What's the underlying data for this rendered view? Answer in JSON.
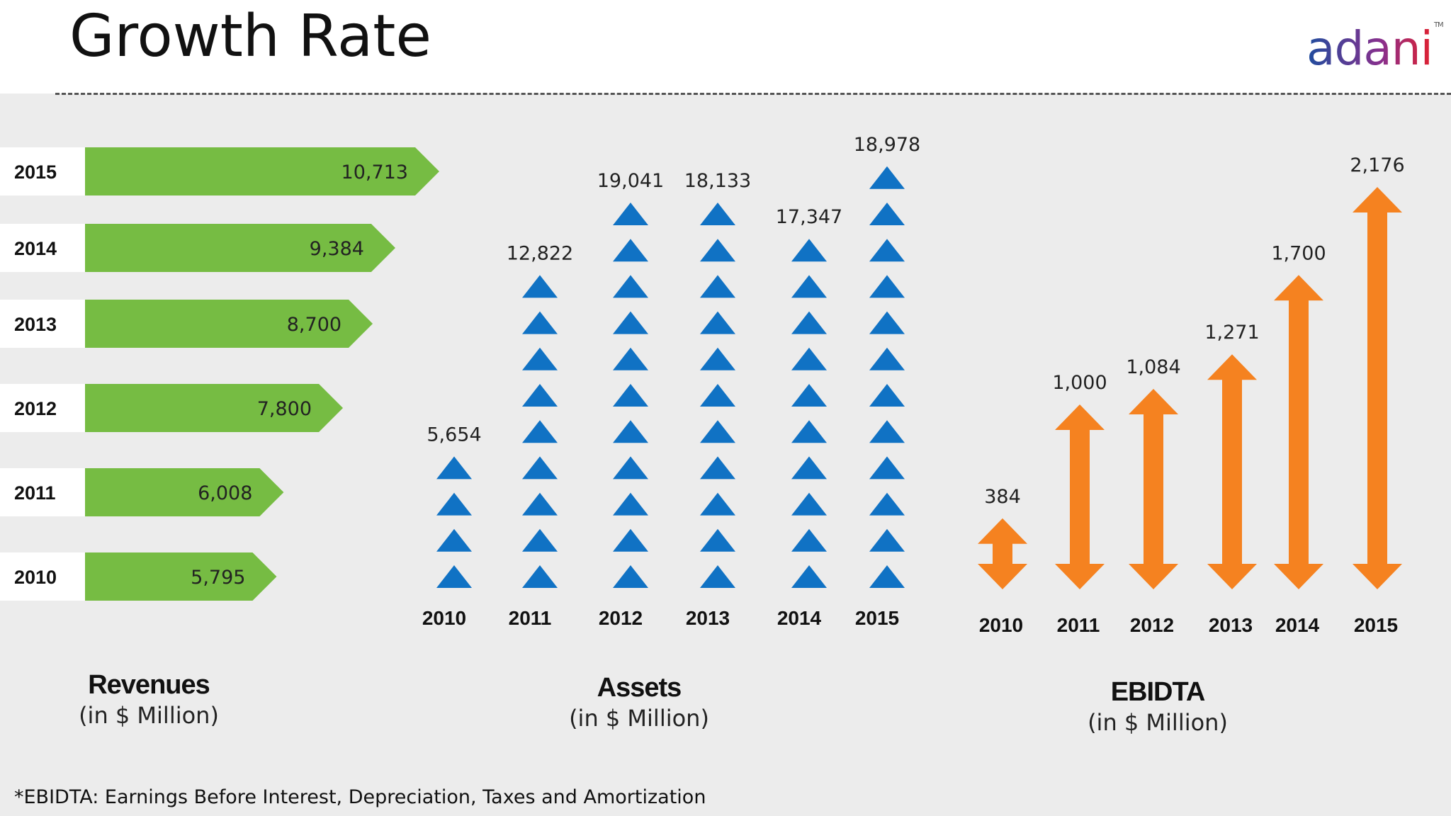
{
  "title": "Growth Rate",
  "logo": {
    "text": "adani",
    "tm": "TM",
    "color_start": "#1f4d9e",
    "color_mid": "#8a2f8c",
    "color_end": "#e0202f"
  },
  "colors": {
    "revenue": "#76bc43",
    "assets": "#1072c4",
    "ebitda": "#f58220"
  },
  "footnote": "*EBIDTA: Earnings Before Interest, Depreciation, Taxes and Amortization",
  "captions": {
    "revenues": {
      "name": "Revenues",
      "unit": "(in $ Million)"
    },
    "assets": {
      "name": "Assets",
      "unit": "(in $ Million)"
    },
    "ebitda": {
      "name": "EBIDTA",
      "unit": "(in $ Million)"
    }
  },
  "chart_data": [
    {
      "type": "bar",
      "orientation": "horizontal",
      "title": "Revenues",
      "unit": "(in $ Million)",
      "categories": [
        "2015",
        "2014",
        "2013",
        "2012",
        "2011",
        "2010"
      ],
      "values": [
        10713,
        9384,
        8700,
        7800,
        6008,
        5795
      ],
      "labels": [
        "10,713",
        "9,384",
        "8,700",
        "7,800",
        "6,008",
        "5,795"
      ]
    },
    {
      "type": "bar",
      "style": "stacked-triangle-pictogram",
      "title": "Assets",
      "unit": "(in $ Million)",
      "categories": [
        "2010",
        "2011",
        "2012",
        "2013",
        "2014",
        "2015"
      ],
      "values": [
        5654,
        12822,
        19041,
        18133,
        17347,
        18978
      ],
      "labels": [
        "5,654",
        "12,822",
        "19,041",
        "18,133",
        "17,347",
        "18,978"
      ],
      "icon_counts": [
        4,
        9,
        11,
        11,
        10,
        12
      ]
    },
    {
      "type": "bar",
      "style": "double-headed-arrows",
      "title": "EBIDTA",
      "unit": "(in $ Million)",
      "categories": [
        "2010",
        "2011",
        "2012",
        "2013",
        "2014",
        "2015"
      ],
      "values": [
        384,
        1000,
        1084,
        1271,
        1700,
        2176
      ],
      "labels": [
        "384",
        "1,000",
        "1,084",
        "1,271",
        "1,700",
        "2,176"
      ]
    }
  ]
}
